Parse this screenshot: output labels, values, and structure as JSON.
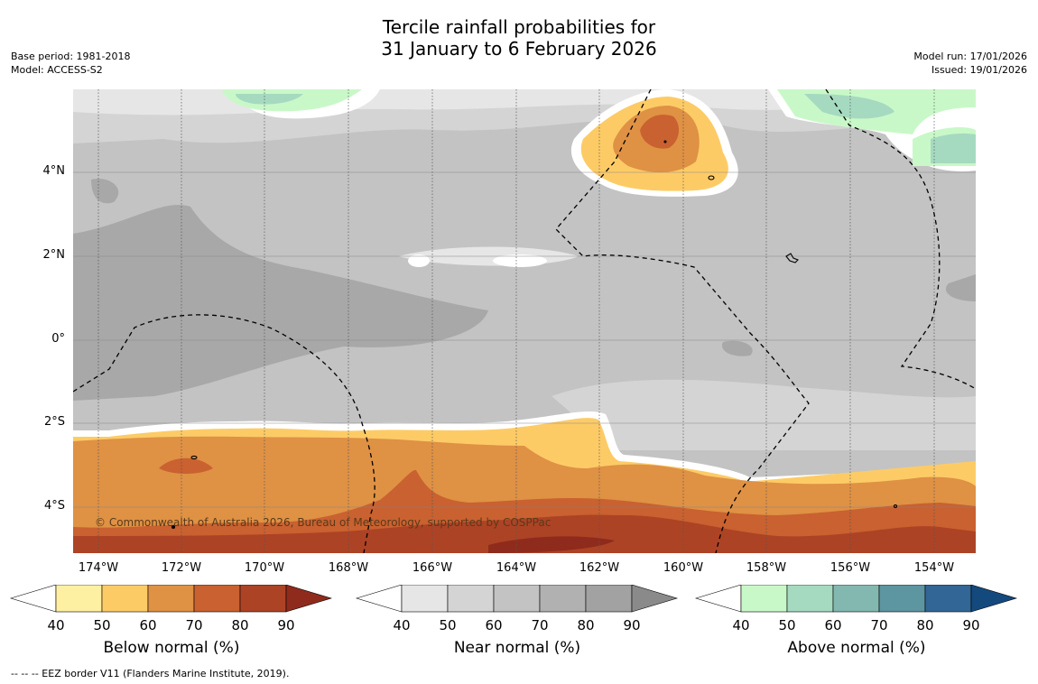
{
  "title": {
    "line1": "Tercile rainfall probabilities for",
    "line2": "31 January to 6 February 2026"
  },
  "meta": {
    "base_period": "Base period: 1981-2018",
    "model": "Model: ACCESS-S2",
    "model_run": "Model run: 17/01/2026",
    "issued": "Issued: 19/01/2026"
  },
  "map": {
    "lat_labels": [
      "4°N",
      "2°N",
      "0°",
      "2°S",
      "4°S"
    ],
    "lon_labels": [
      "174°W",
      "172°W",
      "170°W",
      "168°W",
      "166°W",
      "164°W",
      "162°W",
      "160°W",
      "158°W",
      "156°W",
      "154°W"
    ],
    "copyright": "© Commonwealth of Australia 2026, Bureau of Meteorology, supported by COSPPac"
  },
  "legends": [
    {
      "label": "Below normal (%)",
      "ticks": [
        "40",
        "50",
        "60",
        "70",
        "80",
        "90"
      ],
      "colors": [
        "#fef0a2",
        "#fdcb66",
        "#df9144",
        "#c96130",
        "#ad4325",
        "#8f2b1c"
      ]
    },
    {
      "label": "Near normal (%)",
      "ticks": [
        "40",
        "50",
        "60",
        "70",
        "80",
        "90"
      ],
      "colors": [
        "#e6e6e6",
        "#d4d4d4",
        "#c3c3c3",
        "#b1b1b1",
        "#a2a2a2",
        "#8a8a8a"
      ]
    },
    {
      "label": "Above normal (%)",
      "ticks": [
        "40",
        "50",
        "60",
        "70",
        "80",
        "90"
      ],
      "colors": [
        "#c9f8c8",
        "#a5dac0",
        "#83b8b0",
        "#5d95a1",
        "#326696",
        "#14497e"
      ]
    }
  ],
  "footer": "--  --  -- EEZ border V11 (Flanders Marine Institute, 2019)."
}
